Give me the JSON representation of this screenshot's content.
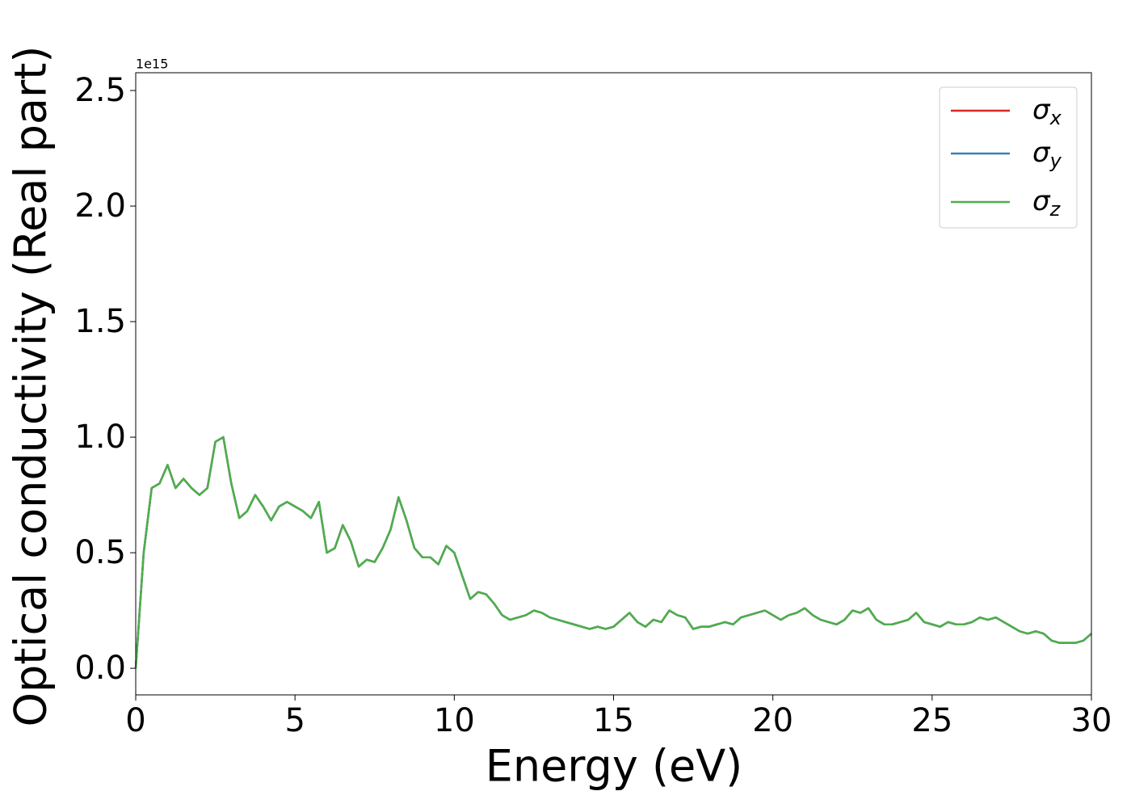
{
  "chart_data": {
    "type": "line",
    "xlabel": "Energy (eV)",
    "ylabel": "Optical conductivity (Real part)",
    "offset_label": "1e15",
    "xlim": [
      0,
      30
    ],
    "xticks": [
      0,
      5,
      10,
      15,
      20,
      25,
      30
    ],
    "ylim": [
      -0.115,
      2.577
    ],
    "yticks": [
      {
        "value": 0,
        "label": "0.0"
      },
      0.5,
      {
        "value": 1,
        "label": "1.0"
      },
      1.5,
      {
        "value": 2,
        "label": "2.0"
      },
      2.5
    ],
    "legend": "upper right",
    "x": [
      0,
      0.25,
      0.5,
      0.75,
      1,
      1.25,
      1.5,
      1.75,
      2,
      2.25,
      2.5,
      2.75,
      3,
      3.25,
      3.5,
      3.75,
      4,
      4.25,
      4.5,
      4.75,
      5,
      5.25,
      5.5,
      5.75,
      6,
      6.25,
      6.5,
      6.75,
      7,
      7.25,
      7.5,
      7.75,
      8,
      8.25,
      8.5,
      8.75,
      9,
      9.25,
      9.5,
      9.75,
      10,
      10.25,
      10.5,
      10.75,
      11,
      11.25,
      11.5,
      11.75,
      12,
      12.25,
      12.5,
      12.75,
      13,
      13.25,
      13.5,
      13.75,
      14,
      14.25,
      14.5,
      14.75,
      15,
      15.25,
      15.5,
      15.75,
      16,
      16.25,
      16.5,
      16.75,
      17,
      17.25,
      17.5,
      17.75,
      18,
      18.25,
      18.5,
      18.75,
      19,
      19.25,
      19.5,
      19.75,
      20,
      20.25,
      20.5,
      20.75,
      21,
      21.25,
      21.5,
      21.75,
      22,
      22.25,
      22.5,
      22.75,
      23,
      23.25,
      23.5,
      23.75,
      24,
      24.25,
      24.5,
      24.75,
      25,
      25.25,
      25.5,
      25.75,
      26,
      26.25,
      26.5,
      26.75,
      27,
      27.25,
      27.5,
      27.75,
      28,
      28.25,
      28.5,
      28.75,
      29,
      29.25,
      29.5,
      29.75,
      30
    ],
    "series": [
      {
        "name": "σx",
        "color": "#d62728",
        "values": [
          0,
          0.5,
          0.78,
          0.8,
          0.88,
          0.78,
          0.82,
          0.78,
          0.75,
          0.78,
          0.98,
          1.0,
          0.8,
          0.65,
          0.68,
          0.75,
          0.7,
          0.64,
          0.7,
          0.72,
          0.7,
          0.68,
          0.65,
          0.72,
          0.5,
          0.52,
          0.62,
          0.55,
          0.44,
          0.47,
          0.46,
          0.52,
          0.6,
          0.74,
          0.64,
          0.52,
          0.48,
          0.48,
          0.45,
          0.53,
          0.5,
          0.4,
          0.3,
          0.33,
          0.32,
          0.28,
          0.23,
          0.21,
          0.22,
          0.23,
          0.25,
          0.24,
          0.22,
          0.21,
          0.2,
          0.19,
          0.18,
          0.17,
          0.18,
          0.17,
          0.18,
          0.21,
          0.24,
          0.2,
          0.18,
          0.21,
          0.2,
          0.25,
          0.23,
          0.22,
          0.17,
          0.18,
          0.18,
          0.19,
          0.2,
          0.19,
          0.22,
          0.23,
          0.24,
          0.25,
          0.23,
          0.21,
          0.23,
          0.24,
          0.26,
          0.23,
          0.21,
          0.2,
          0.19,
          0.21,
          0.25,
          0.24,
          0.26,
          0.21,
          0.19,
          0.19,
          0.2,
          0.21,
          0.24,
          0.2,
          0.19,
          0.18,
          0.2,
          0.19,
          0.19,
          0.2,
          0.22,
          0.21,
          0.22,
          0.2,
          0.18,
          0.16,
          0.15,
          0.16,
          0.15,
          0.12,
          0.11,
          0.11,
          0.11,
          0.12,
          0.15
        ]
      },
      {
        "name": "σy",
        "color": "#3a7fb5",
        "values": [
          0,
          0.5,
          0.78,
          0.8,
          0.88,
          0.78,
          0.82,
          0.78,
          0.75,
          0.78,
          0.98,
          1.0,
          0.8,
          0.65,
          0.68,
          0.75,
          0.7,
          0.64,
          0.7,
          0.72,
          0.7,
          0.68,
          0.65,
          0.72,
          0.5,
          0.52,
          0.62,
          0.55,
          0.44,
          0.47,
          0.46,
          0.52,
          0.6,
          0.74,
          0.64,
          0.52,
          0.48,
          0.48,
          0.45,
          0.53,
          0.5,
          0.4,
          0.3,
          0.33,
          0.32,
          0.28,
          0.23,
          0.21,
          0.22,
          0.23,
          0.25,
          0.24,
          0.22,
          0.21,
          0.2,
          0.19,
          0.18,
          0.17,
          0.18,
          0.17,
          0.18,
          0.21,
          0.24,
          0.2,
          0.18,
          0.21,
          0.2,
          0.25,
          0.23,
          0.22,
          0.17,
          0.18,
          0.18,
          0.19,
          0.2,
          0.19,
          0.22,
          0.23,
          0.24,
          0.25,
          0.23,
          0.21,
          0.23,
          0.24,
          0.26,
          0.23,
          0.21,
          0.2,
          0.19,
          0.21,
          0.25,
          0.24,
          0.26,
          0.21,
          0.19,
          0.19,
          0.2,
          0.21,
          0.24,
          0.2,
          0.19,
          0.18,
          0.2,
          0.19,
          0.19,
          0.2,
          0.22,
          0.21,
          0.22,
          0.2,
          0.18,
          0.16,
          0.15,
          0.16,
          0.15,
          0.12,
          0.11,
          0.11,
          0.11,
          0.12,
          0.15
        ]
      },
      {
        "name": "σz",
        "color": "#4daf4a",
        "values": [
          0,
          0.5,
          0.78,
          0.8,
          0.88,
          0.78,
          0.82,
          0.78,
          0.75,
          0.78,
          0.98,
          1.0,
          0.8,
          0.65,
          0.68,
          0.75,
          0.7,
          0.64,
          0.7,
          0.72,
          0.7,
          0.68,
          0.65,
          0.72,
          0.5,
          0.52,
          0.62,
          0.55,
          0.44,
          0.47,
          0.46,
          0.52,
          0.6,
          0.74,
          0.64,
          0.52,
          0.48,
          0.48,
          0.45,
          0.53,
          0.5,
          0.4,
          0.3,
          0.33,
          0.32,
          0.28,
          0.23,
          0.21,
          0.22,
          0.23,
          0.25,
          0.24,
          0.22,
          0.21,
          0.2,
          0.19,
          0.18,
          0.17,
          0.18,
          0.17,
          0.18,
          0.21,
          0.24,
          0.2,
          0.18,
          0.21,
          0.2,
          0.25,
          0.23,
          0.22,
          0.17,
          0.18,
          0.18,
          0.19,
          0.2,
          0.19,
          0.22,
          0.23,
          0.24,
          0.25,
          0.23,
          0.21,
          0.23,
          0.24,
          0.26,
          0.23,
          0.21,
          0.2,
          0.19,
          0.21,
          0.25,
          0.24,
          0.26,
          0.21,
          0.19,
          0.19,
          0.2,
          0.21,
          0.24,
          0.2,
          0.19,
          0.18,
          0.2,
          0.19,
          0.19,
          0.2,
          0.22,
          0.21,
          0.22,
          0.2,
          0.18,
          0.16,
          0.15,
          0.16,
          0.15,
          0.12,
          0.11,
          0.11,
          0.11,
          0.12,
          0.15
        ]
      }
    ]
  }
}
